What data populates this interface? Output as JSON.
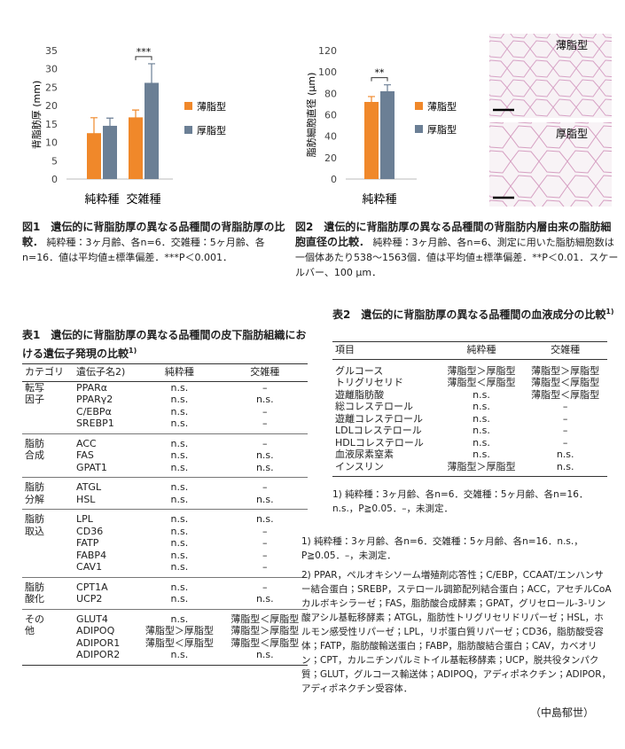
{
  "chart_data": [
    {
      "type": "bar",
      "y_label": "背脂肪厚 (mm)",
      "categories": [
        "純粋種",
        "交雑種"
      ],
      "series": [
        {
          "name": "薄脂型",
          "color": "#f0882a",
          "values": [
            12.5,
            16.8
          ],
          "errors": [
            4.2,
            2.0
          ]
        },
        {
          "name": "厚脂型",
          "color": "#6b7f95",
          "values": [
            14.5,
            26.2
          ],
          "errors": [
            2.1,
            5.2
          ]
        }
      ],
      "ylim": [
        0,
        35
      ],
      "yticks": [
        0,
        5,
        10,
        15,
        20,
        25,
        30,
        35
      ],
      "grid": false,
      "annotations": [
        "***"
      ]
    },
    {
      "type": "bar",
      "y_label": "脂肪細胞直径 (μm)",
      "categories": [
        "純粋種"
      ],
      "series": [
        {
          "name": "薄脂型",
          "color": "#f0882a",
          "values": [
            72
          ],
          "errors": [
            5
          ]
        },
        {
          "name": "厚脂型",
          "color": "#6b7f95",
          "values": [
            82
          ],
          "errors": [
            6
          ]
        }
      ],
      "ylim": [
        0,
        120
      ],
      "yticks": [
        0,
        20,
        40,
        60,
        80,
        100,
        120
      ],
      "grid": false,
      "annotations": [
        "**"
      ]
    }
  ],
  "micrographs": [
    {
      "label": "薄脂型"
    },
    {
      "label": "厚脂型"
    }
  ],
  "fig1_caption": {
    "title": "図1　遺伝的に背脂肪厚の異なる品種間の背脂肪厚の比較．",
    "text": "純粋種：3ヶ月齢、各n=6．交雑種：5ヶ月齢、各n=16．値は平均値±標準偏差．***P＜0.001．"
  },
  "fig2_caption": {
    "title": "図2　遺伝的に背脂肪厚の異なる品種間の背脂肪内層由来の脂肪細胞直径の比較．",
    "text": "純粋種：3ヶ月齢、各n=6、測定に用いた脂肪細胞数は一個体あたり538～1563個．値は平均値±標準偏差．**P＜0.01．スケールバー、100 μm．"
  },
  "table1": {
    "title": "表1　遺伝的に背脂肪厚の異なる品種間の皮下脂肪組織における遺伝子発現の比較",
    "title_note": "1)",
    "header": [
      "カテゴリ",
      "遺伝子名2)",
      "純粋種",
      "交雑種"
    ],
    "groups": [
      {
        "category": "転写因子",
        "rows": [
          [
            "PPARα",
            "n.s.",
            "–"
          ],
          [
            "PPARγ2",
            "n.s.",
            "n.s."
          ],
          [
            "C/EBPα",
            "n.s.",
            "–"
          ],
          [
            "SREBP1",
            "n.s.",
            "–"
          ]
        ]
      },
      {
        "category": "脂肪合成",
        "rows": [
          [
            "ACC",
            "n.s.",
            "–"
          ],
          [
            "FAS",
            "n.s.",
            "n.s."
          ],
          [
            "GPAT1",
            "n.s.",
            "n.s."
          ]
        ]
      },
      {
        "category": "脂肪分解",
        "rows": [
          [
            "ATGL",
            "n.s.",
            "–"
          ],
          [
            "HSL",
            "n.s.",
            "n.s."
          ]
        ]
      },
      {
        "category": "脂肪取込",
        "rows": [
          [
            "LPL",
            "n.s.",
            "n.s."
          ],
          [
            "CD36",
            "n.s.",
            "–"
          ],
          [
            "FATP",
            "n.s.",
            "–"
          ],
          [
            "FABP4",
            "n.s.",
            "–"
          ],
          [
            "CAV1",
            "n.s.",
            "–"
          ]
        ]
      },
      {
        "category": "脂肪酸化",
        "rows": [
          [
            "CPT1A",
            "n.s.",
            "–"
          ],
          [
            "UCP2",
            "n.s.",
            "n.s."
          ]
        ]
      },
      {
        "category": "その他",
        "rows": [
          [
            "GLUT4",
            "n.s.",
            "薄脂型＜厚脂型"
          ],
          [
            "ADIPOQ",
            "薄脂型＞厚脂型",
            "薄脂型＞厚脂型"
          ],
          [
            "ADIPOR1",
            "薄脂型＜厚脂型",
            "薄脂型＜厚脂型"
          ],
          [
            "ADIPOR2",
            "n.s.",
            "n.s."
          ]
        ]
      }
    ]
  },
  "table2": {
    "title": "表2　遺伝的に背脂肪厚の異なる品種間の血液成分の比較",
    "title_note": "1)",
    "header": [
      "項目",
      "純粋種",
      "交雑種"
    ],
    "rows": [
      [
        "グルコース",
        "薄脂型＞厚脂型",
        "薄脂型＞厚脂型"
      ],
      [
        "トリグリセリド",
        "薄脂型＜厚脂型",
        "薄脂型＜厚脂型"
      ],
      [
        "遊離脂肪酸",
        "n.s.",
        "薄脂型＜厚脂型"
      ],
      [
        "総コレステロール",
        "n.s.",
        "–"
      ],
      [
        "遊離コレステロール",
        "n.s.",
        "–"
      ],
      [
        "LDLコレステロール",
        "n.s.",
        "–"
      ],
      [
        "HDLコレステロール",
        "n.s.",
        "–"
      ],
      [
        "血液尿素窒素",
        "n.s.",
        "n.s."
      ],
      [
        "インスリン",
        "薄脂型＞厚脂型",
        "n.s."
      ]
    ],
    "note": "1) 純粋種：3ヶ月齢、各n=6．交雑種：5ヶ月齢、各n=16．n.s.，P≧0.05．–，未測定．"
  },
  "footnotes": [
    "1) 純粋種：3ヶ月齢、各n=6．交雑種：5ヶ月齢、各n=16．n.s.，P≧0.05．–，未測定．",
    "2) PPAR，ペルオキシソーム増殖剤応答性；C/EBP，CCAAT/エンハンサー結合蛋白；SREBP，ステロール調節配列結合蛋白；ACC，アセチルCoAカルボキシラーゼ；FAS，脂肪酸合成酵素；GPAT，グリセロール-3-リン酸アシル基転移酵素；ATGL，脂肪性トリグリセリドリパーゼ；HSL，ホルモン感受性リパーゼ；LPL，リポ蛋白質リパーゼ；CD36，脂肪酸受容体；FATP，脂肪酸輸送蛋白；FABP，脂肪酸結合蛋白；CAV，カベオリン；CPT，カルニチンパルミトイル基転移酵素；UCP，脱共役タンパク質；GLUT，グルコース輸送体；ADIPOQ，アディポネクチン；ADIPOR，アディポネクチン受容体．"
  ],
  "author": "（中島郁世）"
}
